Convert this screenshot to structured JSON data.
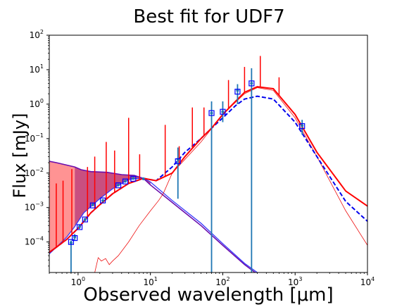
{
  "chart_data": {
    "type": "line",
    "title": "Best fit for UDF7",
    "xlabel": "Observed wavelength [μm]",
    "ylabel": "Flux [mJy]",
    "xscale": "log",
    "yscale": "log",
    "xlim": [
      0.4,
      10000
    ],
    "ylim": [
      1.3e-05,
      100
    ],
    "x_ticks": [
      {
        "value": 1,
        "base": "10",
        "exp": "0"
      },
      {
        "value": 10,
        "base": "10",
        "exp": "1"
      },
      {
        "value": 100,
        "base": "10",
        "exp": "2"
      },
      {
        "value": 1000,
        "base": "10",
        "exp": "3"
      },
      {
        "value": 10000,
        "base": "10",
        "exp": "4"
      }
    ],
    "y_ticks": [
      {
        "value": 0.0001,
        "base": "10",
        "exp": "−4"
      },
      {
        "value": 0.001,
        "base": "10",
        "exp": "−3"
      },
      {
        "value": 0.01,
        "base": "10",
        "exp": "−2"
      },
      {
        "value": 0.1,
        "base": "10",
        "exp": "−1"
      },
      {
        "value": 1,
        "base": "10",
        "exp": "0"
      },
      {
        "value": 10,
        "base": "10",
        "exp": "1"
      },
      {
        "value": 100,
        "base": "10",
        "exp": "2"
      }
    ],
    "grid": false,
    "legend": "none",
    "colors": {
      "total_model": "#ff0000",
      "attenuated_model": "#0000ee",
      "stellar_unattenuated": "#6a0dad",
      "stellar_attenuated": "#3030ff",
      "attenuation_fill": "#c0306a",
      "intrinsic_fill": "#ff8080",
      "dust_component": "#ee1111",
      "observations": "#1f77b4",
      "model_fluxes": "#0000ff"
    },
    "series": [
      {
        "style": "solid",
        "x": [
          0.4,
          0.5,
          0.7,
          1.0,
          1.5,
          2.0,
          3.0,
          5.0,
          8.0,
          12,
          20,
          30,
          50,
          70,
          100,
          150,
          200,
          300,
          500,
          1000,
          2000,
          5000,
          10000
        ],
        "y": [
          5e-05,
          7e-05,
          0.00012,
          0.00025,
          0.0007,
          0.0012,
          0.0025,
          0.005,
          0.007,
          0.006,
          0.01,
          0.03,
          0.1,
          0.2,
          0.5,
          1.2,
          2.2,
          3.2,
          2.8,
          0.5,
          0.04,
          0.003,
          0.0011
        ]
      },
      {
        "style": "dashed",
        "x": [
          0.4,
          0.5,
          0.7,
          1.0,
          1.5,
          2.0,
          3.0,
          5.0,
          8.0,
          12,
          20,
          30,
          50,
          70,
          100,
          150,
          200,
          300,
          500,
          1000,
          2000,
          5000,
          10000
        ],
        "y": [
          5e-05,
          7e-05,
          0.00012,
          0.00025,
          0.0007,
          0.0012,
          0.0025,
          0.005,
          0.007,
          0.006,
          0.015,
          0.04,
          0.1,
          0.2,
          0.4,
          0.9,
          1.4,
          1.7,
          1.4,
          0.3,
          0.03,
          0.0015,
          0.0004
        ]
      },
      {
        "style": "solid",
        "x": [
          0.4,
          0.5,
          0.7,
          0.9,
          1.1,
          1.5,
          2.5,
          4,
          6,
          8,
          10,
          20,
          50,
          100,
          200,
          280
        ],
        "y": [
          0.022,
          0.02,
          0.017,
          0.015,
          0.0125,
          0.011,
          0.0105,
          0.009,
          0.0085,
          0.007,
          0.0045,
          0.0014,
          0.0003,
          8e-05,
          2.2e-05,
          1.3e-05
        ]
      },
      {
        "style": "solid",
        "x": [
          0.4,
          0.5,
          0.7,
          0.9,
          1.2,
          2,
          3,
          5,
          8,
          10,
          20,
          50,
          100,
          200,
          300
        ],
        "y": [
          4.5e-05,
          7e-05,
          0.00014,
          0.00028,
          0.0007,
          0.0018,
          0.0035,
          0.0065,
          0.0072,
          0.0055,
          0.0016,
          0.00035,
          9e-05,
          2.4e-05,
          1.3e-05
        ]
      },
      {
        "style": "solid-thin",
        "x": [
          1.7,
          1.9,
          2.1,
          2.4,
          2.7,
          3.0,
          3.6,
          5,
          7,
          10,
          13,
          15,
          20,
          30,
          50,
          100,
          200,
          300,
          500,
          1000,
          2000,
          5000,
          10000
        ],
        "y": [
          1.3e-05,
          3.5e-05,
          2.8e-05,
          3.3e-05,
          2.2e-05,
          2.8e-05,
          4e-05,
          0.0001,
          0.0003,
          0.0008,
          0.0016,
          0.0025,
          0.01,
          0.025,
          0.08,
          0.5,
          2.0,
          3.0,
          2.5,
          0.4,
          0.03,
          0.0008,
          8e-05
        ]
      }
    ],
    "observations": [
      {
        "x": 0.8,
        "y": 9.5e-05,
        "err_low": 1.3e-05,
        "err_high": 0.00011
      },
      {
        "x": 0.9,
        "y": 0.00014,
        "err_low": 0.00011,
        "err_high": 0.00017
      },
      {
        "x": 1.05,
        "y": 0.00028,
        "err_low": 0.00024,
        "err_high": 0.00032
      },
      {
        "x": 1.25,
        "y": 0.00045,
        "err_low": 0.0004,
        "err_high": 0.0005
      },
      {
        "x": 1.6,
        "y": 0.0012,
        "err_low": 0.0011,
        "err_high": 0.0013
      },
      {
        "x": 2.2,
        "y": 0.0016,
        "err_low": 0.0015,
        "err_high": 0.0017
      },
      {
        "x": 3.6,
        "y": 0.0045,
        "err_low": 0.0042,
        "err_high": 0.0048
      },
      {
        "x": 4.5,
        "y": 0.0058,
        "err_low": 0.0055,
        "err_high": 0.0061
      },
      {
        "x": 5.8,
        "y": 0.007,
        "err_low": 0.0066,
        "err_high": 0.0074
      },
      {
        "x": 8.0,
        "y": 0.0068,
        "err_low": 0.0064,
        "err_high": 0.0072
      },
      {
        "x": 24,
        "y": 0.025,
        "err_low": 0.0018,
        "err_high": 0.055
      },
      {
        "x": 70,
        "y": 0.55,
        "err_low": 1.3e-05,
        "err_high": 1.2
      },
      {
        "x": 100,
        "y": 0.6,
        "err_low": 0.3,
        "err_high": 1.2
      },
      {
        "x": 160,
        "y": 2.5,
        "err_low": 1.0,
        "err_high": 3.8
      },
      {
        "x": 250,
        "y": 4.0,
        "err_low": 1.3e-05,
        "err_high": 11
      },
      {
        "x": 1250,
        "y": 0.24,
        "err_low": 0.13,
        "err_high": 0.35
      }
    ],
    "model_fluxes": [
      {
        "x": 0.8,
        "y": 0.0001
      },
      {
        "x": 0.9,
        "y": 0.00013
      },
      {
        "x": 1.05,
        "y": 0.00027
      },
      {
        "x": 1.25,
        "y": 0.00045
      },
      {
        "x": 1.6,
        "y": 0.00115
      },
      {
        "x": 2.2,
        "y": 0.0016
      },
      {
        "x": 3.6,
        "y": 0.0044
      },
      {
        "x": 4.5,
        "y": 0.0057
      },
      {
        "x": 5.8,
        "y": 0.0068
      },
      {
        "x": 24,
        "y": 0.022
      },
      {
        "x": 70,
        "y": 0.55
      },
      {
        "x": 100,
        "y": 0.6
      },
      {
        "x": 160,
        "y": 2.3
      },
      {
        "x": 250,
        "y": 4.0
      },
      {
        "x": 1250,
        "y": 0.23
      }
    ],
    "emission_lines": [
      {
        "x": 0.5,
        "peak": 0.005
      },
      {
        "x": 0.62,
        "peak": 0.006
      },
      {
        "x": 0.82,
        "peak": 0.013
      },
      {
        "x": 1.35,
        "peak": 0.015
      },
      {
        "x": 1.7,
        "peak": 0.03
      },
      {
        "x": 2.45,
        "peak": 0.08
      },
      {
        "x": 3.2,
        "peak": 0.045
      },
      {
        "x": 5.0,
        "peak": 0.4
      },
      {
        "x": 7.1,
        "peak": 0.035
      },
      {
        "x": 16,
        "peak": 0.25
      },
      {
        "x": 25,
        "peak": 0.06
      },
      {
        "x": 38,
        "peak": 0.8
      },
      {
        "x": 55,
        "peak": 0.8
      },
      {
        "x": 80,
        "peak": 0.3
      },
      {
        "x": 120,
        "peak": 5.0
      },
      {
        "x": 200,
        "peak": 12
      },
      {
        "x": 330,
        "peak": 25
      },
      {
        "x": 600,
        "peak": 6
      }
    ]
  }
}
